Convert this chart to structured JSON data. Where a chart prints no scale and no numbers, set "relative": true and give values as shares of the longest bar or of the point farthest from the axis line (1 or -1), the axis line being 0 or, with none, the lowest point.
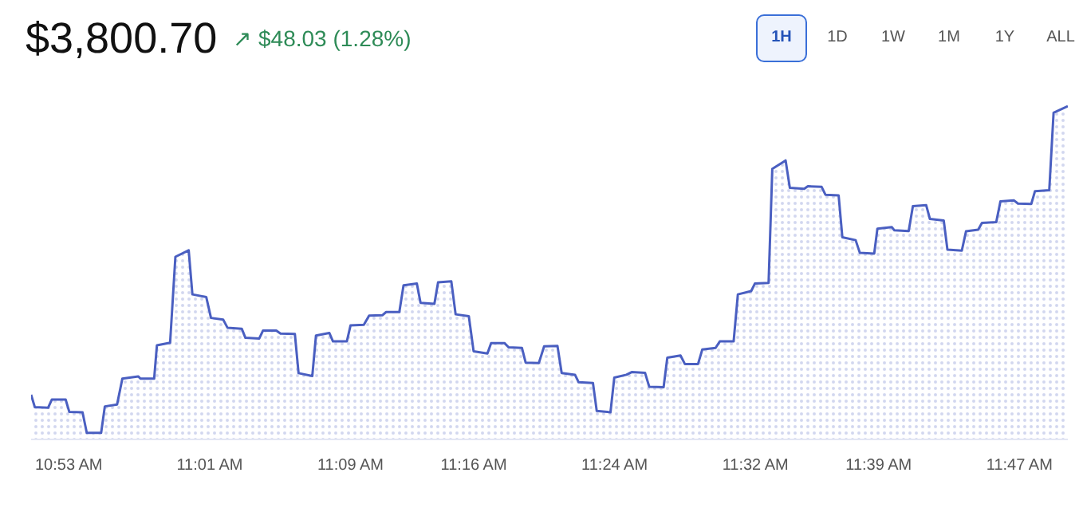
{
  "chart_data": {
    "type": "area",
    "title": "$3,800.70",
    "subtitle": "↗ $48.03 (1.28%)",
    "annotations": [
      "1H",
      "1D",
      "1W",
      "1M",
      "1Y",
      "ALL"
    ],
    "relative": true,
    "grid": false,
    "x": [
      10.8472,
      10.8507,
      10.8633,
      10.8668,
      10.8799,
      10.8834,
      10.8959,
      10.8999,
      10.9135,
      10.917,
      10.9286,
      10.9336,
      10.9487,
      10.9507,
      10.9637,
      10.9663,
      10.9788,
      10.9838,
      10.9964,
      10.9999,
      11.013,
      11.0175,
      11.029,
      11.0331,
      11.0466,
      11.0501,
      11.0632,
      11.0667,
      11.0793,
      11.0833,
      11.0969,
      11.1004,
      11.1134,
      11.1169,
      11.1295,
      11.133,
      11.1461,
      11.1496,
      11.1622,
      11.1672,
      11.1797,
      11.1833,
      11.1958,
      11.1998,
      11.2124,
      11.2159,
      11.229,
      11.2325,
      11.245,
      11.2491,
      11.2616,
      11.2661,
      11.2792,
      11.2827,
      11.2953,
      11.2993,
      11.3119,
      11.3154,
      11.3279,
      11.3329,
      11.3455,
      11.3495,
      11.3621,
      11.3656,
      11.3791,
      11.3827,
      11.3957,
      11.3993,
      11.4108,
      11.4158,
      11.4284,
      11.4324,
      11.446,
      11.4495,
      11.462,
      11.4661,
      11.4786,
      11.4826,
      11.4952,
      11.4992,
      11.5123,
      11.5163,
      11.5289,
      11.5324,
      11.5454,
      11.5489,
      11.5615,
      11.5655,
      11.5791,
      11.5826,
      11.5956,
      11.5992,
      11.6117,
      11.6152,
      11.6278,
      11.6318,
      11.6454,
      11.6484,
      11.662,
      11.6645,
      11.678,
      11.682,
      11.6946,
      11.6981,
      11.7112,
      11.7147,
      11.7283,
      11.7323,
      11.7438,
      11.7474,
      11.7609,
      11.7649,
      11.7775,
      11.7815,
      11.7941,
      11.7976,
      11.8111,
      11.8152,
      11.8287
    ],
    "series": [
      {
        "color": "#4a5fc1",
        "values": [
          0.117,
          0.079,
          0.077,
          0.102,
          0.102,
          0.064,
          0.063,
          0,
          0,
          0.081,
          0.087,
          0.166,
          0.173,
          0.166,
          0.166,
          0.268,
          0.276,
          0.539,
          0.559,
          0.424,
          0.416,
          0.352,
          0.347,
          0.322,
          0.319,
          0.291,
          0.289,
          0.313,
          0.313,
          0.304,
          0.303,
          0.183,
          0.174,
          0.298,
          0.306,
          0.28,
          0.28,
          0.329,
          0.331,
          0.359,
          0.36,
          0.37,
          0.37,
          0.452,
          0.457,
          0.398,
          0.395,
          0.461,
          0.464,
          0.363,
          0.357,
          0.25,
          0.243,
          0.275,
          0.275,
          0.262,
          0.26,
          0.215,
          0.214,
          0.265,
          0.266,
          0.183,
          0.178,
          0.155,
          0.153,
          0.067,
          0.063,
          0.169,
          0.178,
          0.186,
          0.184,
          0.141,
          0.14,
          0.23,
          0.237,
          0.211,
          0.211,
          0.255,
          0.26,
          0.28,
          0.28,
          0.424,
          0.434,
          0.457,
          0.459,
          0.808,
          0.834,
          0.75,
          0.747,
          0.755,
          0.753,
          0.729,
          0.727,
          0.599,
          0.59,
          0.551,
          0.549,
          0.625,
          0.63,
          0.62,
          0.618,
          0.694,
          0.697,
          0.655,
          0.65,
          0.561,
          0.558,
          0.617,
          0.622,
          0.643,
          0.645,
          0.709,
          0.712,
          0.702,
          0.701,
          0.74,
          0.743,
          0.98,
          1.0
        ]
      }
    ],
    "xlim": [
      10.8472,
      11.8287
    ],
    "xticks": [
      {
        "value": 10.8833,
        "label": "10:53 AM"
      },
      {
        "value": 11.0167,
        "label": "11:01 AM"
      },
      {
        "value": 11.15,
        "label": "11:09 AM"
      },
      {
        "value": 11.2667,
        "label": "11:16 AM"
      },
      {
        "value": 11.4,
        "label": "11:24 AM"
      },
      {
        "value": 11.5333,
        "label": "11:32 AM"
      },
      {
        "value": 11.65,
        "label": "11:39 AM"
      },
      {
        "value": 11.7833,
        "label": "11:47 AM"
      }
    ]
  }
}
